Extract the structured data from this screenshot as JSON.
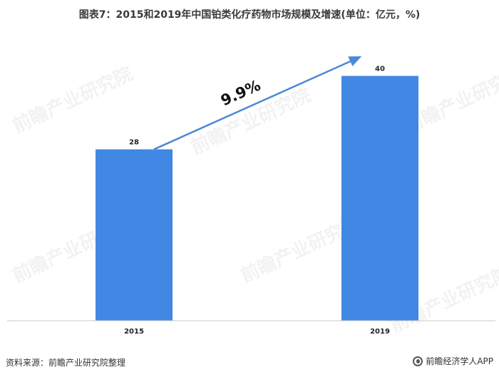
{
  "title": "图表7：2015和2019年中国铂类化疗药物市场规模及增速(单位：亿元，%)",
  "footer": {
    "source": "资料来源：前瞻产业研究院整理",
    "brand": "前瞻经济学人APP"
  },
  "watermark": "前瞻产业研究院",
  "colors": {
    "bar": "#4287e3",
    "arrow": "#4a8ad8",
    "axis": "#c8c8c8"
  },
  "chart_data": {
    "type": "bar",
    "categories": [
      "2015",
      "2019"
    ],
    "values": [
      28,
      40
    ],
    "data_labels": [
      "28",
      "40"
    ],
    "annotation": "9.9%",
    "ylim": [
      0,
      46
    ],
    "grid": false,
    "legend": "none"
  }
}
